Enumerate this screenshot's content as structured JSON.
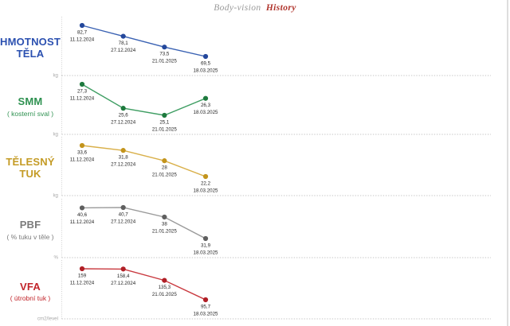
{
  "header": {
    "brand": "Body-vision",
    "section": "History"
  },
  "chart_data": [
    {
      "type": "line",
      "title_lines": [
        "HMOTNOST",
        "TĚLA"
      ],
      "subtitle": "",
      "unit": "kg",
      "line_color": "#3a62b3",
      "marker_color": "#24489c",
      "label_color": "#2b50b0",
      "x": [
        "11.12.2024",
        "27.12.2024",
        "21.01.2025",
        "18.03.2025"
      ],
      "values": [
        82.7,
        78.1,
        73.5,
        69.5
      ],
      "value_labels": [
        "82,7",
        "78,1",
        "73,5",
        "69,5"
      ]
    },
    {
      "type": "line",
      "title_lines": [
        "SMM"
      ],
      "subtitle": "( kosterní sval )",
      "unit": "kg",
      "line_color": "#3f9e63",
      "marker_color": "#1e7a3e",
      "label_color": "#2e9150",
      "x": [
        "11.12.2024",
        "27.12.2024",
        "21.01.2025",
        "18.03.2025"
      ],
      "values": [
        27.3,
        25.6,
        25.1,
        26.3
      ],
      "value_labels": [
        "27,3",
        "25,6",
        "25,1",
        "26,3"
      ]
    },
    {
      "type": "line",
      "title_lines": [
        "TĚLESNÝ",
        "TUK"
      ],
      "subtitle": "",
      "unit": "kg",
      "line_color": "#d9b04a",
      "marker_color": "#c3941c",
      "label_color": "#c49b25",
      "x": [
        "11.12.2024",
        "27.12.2024",
        "21.01.2025",
        "18.03.2025"
      ],
      "values": [
        33.6,
        31.8,
        28,
        22.2
      ],
      "value_labels": [
        "33,6",
        "31,8",
        "28",
        "22,2"
      ]
    },
    {
      "type": "line",
      "title_lines": [
        "PBF"
      ],
      "subtitle": "( % tuku v těle )",
      "unit": "%",
      "line_color": "#9a9a9a",
      "marker_color": "#5f5f5f",
      "label_color": "#7b7b7b",
      "x": [
        "11.12.2024",
        "27.12.2024",
        "21.01.2025",
        "18.03.2025"
      ],
      "values": [
        40.6,
        40.7,
        38,
        31.9
      ],
      "value_labels": [
        "40,6",
        "40,7",
        "38",
        "31,9"
      ]
    },
    {
      "type": "line",
      "title_lines": [
        "VFA"
      ],
      "subtitle": "( útrobní tuk )",
      "unit": "cm2/level",
      "line_color": "#c9393f",
      "marker_color": "#b01f26",
      "label_color": "#c2252b",
      "x": [
        "11.12.2024",
        "27.12.2024",
        "21.01.2025",
        "18.03.2025"
      ],
      "values": [
        159,
        158.4,
        135.3,
        95.7
      ],
      "value_labels": [
        "159",
        "158,4",
        "135,3",
        "95,7"
      ]
    }
  ]
}
